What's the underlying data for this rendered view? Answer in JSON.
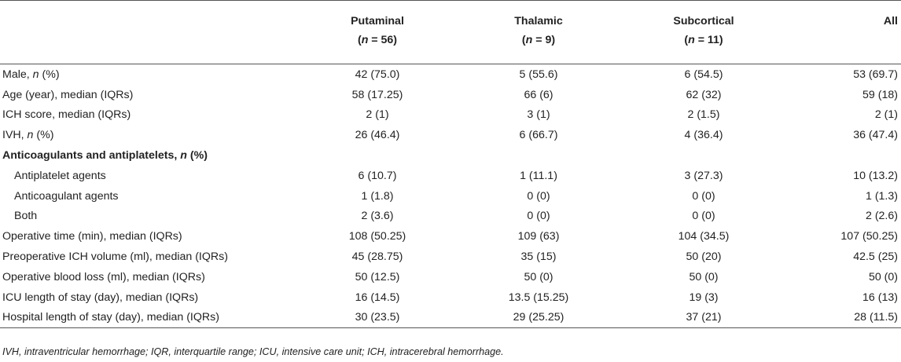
{
  "table": {
    "header_row1": [
      "",
      "Putaminal",
      "Thalamic",
      "Subcortical",
      "All"
    ],
    "header_row2": [
      "",
      "(n = 56)",
      "(n = 9)",
      "(n = 11)",
      ""
    ],
    "rows": [
      {
        "label": "Male, n (%)",
        "indent": false,
        "section": false,
        "values": [
          "42 (75.0)",
          "5 (55.6)",
          "6 (54.5)",
          "53 (69.7)"
        ]
      },
      {
        "label": "Age (year), median (IQRs)",
        "indent": false,
        "section": false,
        "values": [
          "58 (17.25)",
          "66 (6)",
          "62 (32)",
          "59 (18)"
        ]
      },
      {
        "label": "ICH score, median (IQRs)",
        "indent": false,
        "section": false,
        "values": [
          "2 (1)",
          "3 (1)",
          "2 (1.5)",
          "2 (1)"
        ]
      },
      {
        "label": "IVH, n (%)",
        "indent": false,
        "section": false,
        "values": [
          "26 (46.4)",
          "6 (66.7)",
          "4 (36.4)",
          "36 (47.4)"
        ]
      },
      {
        "label": "Anticoagulants and antiplatelets, n (%)",
        "indent": false,
        "section": true,
        "values": [
          "",
          "",
          "",
          ""
        ]
      },
      {
        "label": "Antiplatelet agents",
        "indent": true,
        "section": false,
        "values": [
          "6 (10.7)",
          "1 (11.1)",
          "3 (27.3)",
          "10 (13.2)"
        ]
      },
      {
        "label": "Anticoagulant agents",
        "indent": true,
        "section": false,
        "values": [
          "1 (1.8)",
          "0 (0)",
          "0 (0)",
          "1 (1.3)"
        ]
      },
      {
        "label": "Both",
        "indent": true,
        "section": false,
        "values": [
          "2 (3.6)",
          "0 (0)",
          "0 (0)",
          "2 (2.6)"
        ]
      },
      {
        "label": "Operative time (min), median (IQRs)",
        "indent": false,
        "section": false,
        "values": [
          "108 (50.25)",
          "109 (63)",
          "104 (34.5)",
          "107 (50.25)"
        ]
      },
      {
        "label": "Preoperative ICH volume (ml), median (IQRs)",
        "indent": false,
        "section": false,
        "values": [
          "45 (28.75)",
          "35 (15)",
          "50 (20)",
          "42.5 (25)"
        ]
      },
      {
        "label": "Operative blood loss (ml), median (IQRs)",
        "indent": false,
        "section": false,
        "values": [
          "50 (12.5)",
          "50 (0)",
          "50 (0)",
          "50 (0)"
        ]
      },
      {
        "label": "ICU length of stay (day), median (IQRs)",
        "indent": false,
        "section": false,
        "values": [
          "16 (14.5)",
          "13.5 (15.25)",
          "19 (3)",
          "16 (13)"
        ]
      },
      {
        "label": "Hospital length of stay (day), median (IQRs)",
        "indent": false,
        "section": false,
        "values": [
          "30 (23.5)",
          "29 (25.25)",
          "37 (21)",
          "28 (11.5)"
        ]
      }
    ]
  },
  "footnote": "IVH, intraventricular hemorrhage; IQR, interquartile range; ICU, intensive care unit; ICH, intracerebral hemorrhage."
}
